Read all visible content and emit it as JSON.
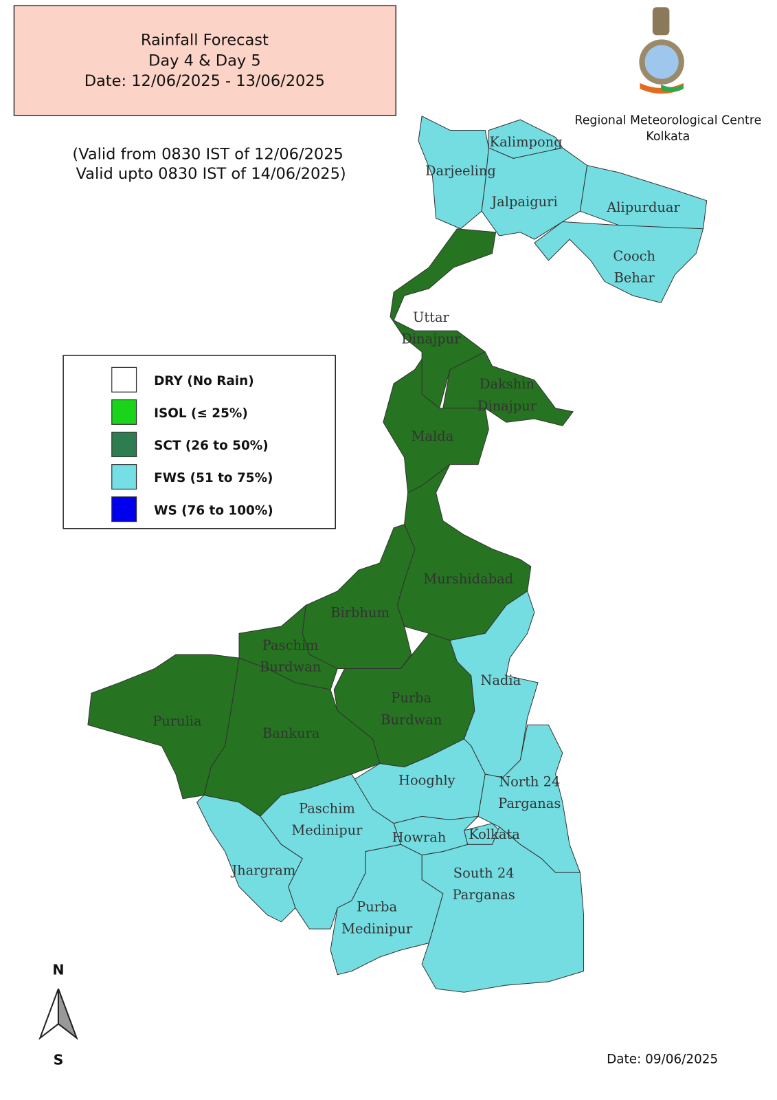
{
  "header": {
    "title_lines": [
      "Rainfall Forecast",
      "Day 4 & Day 5",
      "Date: 12/06/2025 - 13/06/2025"
    ]
  },
  "validity": [
    "(Valid from 0830 IST of 12/06/2025",
    "Valid upto 0830 IST of 14/06/2025)"
  ],
  "organization": [
    "Regional Meteorological Centre",
    "Kolkata"
  ],
  "legend": [
    {
      "label": "DRY (No Rain)",
      "color": "#ffffff"
    },
    {
      "label": "ISOL (≤ 25%)",
      "color": "#19d419"
    },
    {
      "label": "SCT (26 to 50%)",
      "color": "#2e7d50"
    },
    {
      "label": "FWS (51 to 75%)",
      "color": "#74dfe5"
    },
    {
      "label": "WS (76 to 100%)",
      "color": "#0000ee"
    }
  ],
  "districts": [
    {
      "label": [
        "Darjeeling"
      ],
      "color": "#74dde2"
    },
    {
      "label": [
        "Kalimpong"
      ],
      "color": "#74dde2"
    },
    {
      "label": [
        "Jalpaiguri"
      ],
      "color": "#74dde2"
    },
    {
      "label": [
        "Alipurduar"
      ],
      "color": "#74dde2"
    },
    {
      "label": [
        "Cooch",
        "Behar"
      ],
      "color": "#74dde2"
    },
    {
      "label": [
        "Uttar",
        "Dinajpur"
      ],
      "color": "#267321"
    },
    {
      "label": [
        "Dakshin",
        "Dinajpur"
      ],
      "color": "#267321"
    },
    {
      "label": [
        "Malda"
      ],
      "color": "#267321"
    },
    {
      "label": [
        "Murshidabad"
      ],
      "color": "#267321"
    },
    {
      "label": [
        "Birbhum"
      ],
      "color": "#267321"
    },
    {
      "label": [
        "Paschim",
        "Burdwan"
      ],
      "color": "#267321"
    },
    {
      "label": [
        "Purba",
        "Burdwan"
      ],
      "color": "#267321"
    },
    {
      "label": [
        "Bankura"
      ],
      "color": "#267321"
    },
    {
      "label": [
        "Purulia"
      ],
      "color": "#267321"
    },
    {
      "label": [
        "Nadia"
      ],
      "color": "#74dde2"
    },
    {
      "label": [
        "Hooghly"
      ],
      "color": "#74dde2"
    },
    {
      "label": [
        "North 24",
        "Parganas"
      ],
      "color": "#74dde2"
    },
    {
      "label": [
        "Kolkata"
      ],
      "color": "#74dde2"
    },
    {
      "label": [
        "Howrah"
      ],
      "color": "#74dde2"
    },
    {
      "label": [
        "South 24",
        "Parganas"
      ],
      "color": "#74dde2"
    },
    {
      "label": [
        "Paschim",
        "Medinipur"
      ],
      "color": "#74dde2"
    },
    {
      "label": [
        "Jhargram"
      ],
      "color": "#74dde2"
    },
    {
      "label": [
        "Purba",
        "Medinipur"
      ],
      "color": "#74dde2"
    }
  ],
  "compass": {
    "north": "N",
    "south": "S"
  },
  "issue_date": "Date: 09/06/2025"
}
